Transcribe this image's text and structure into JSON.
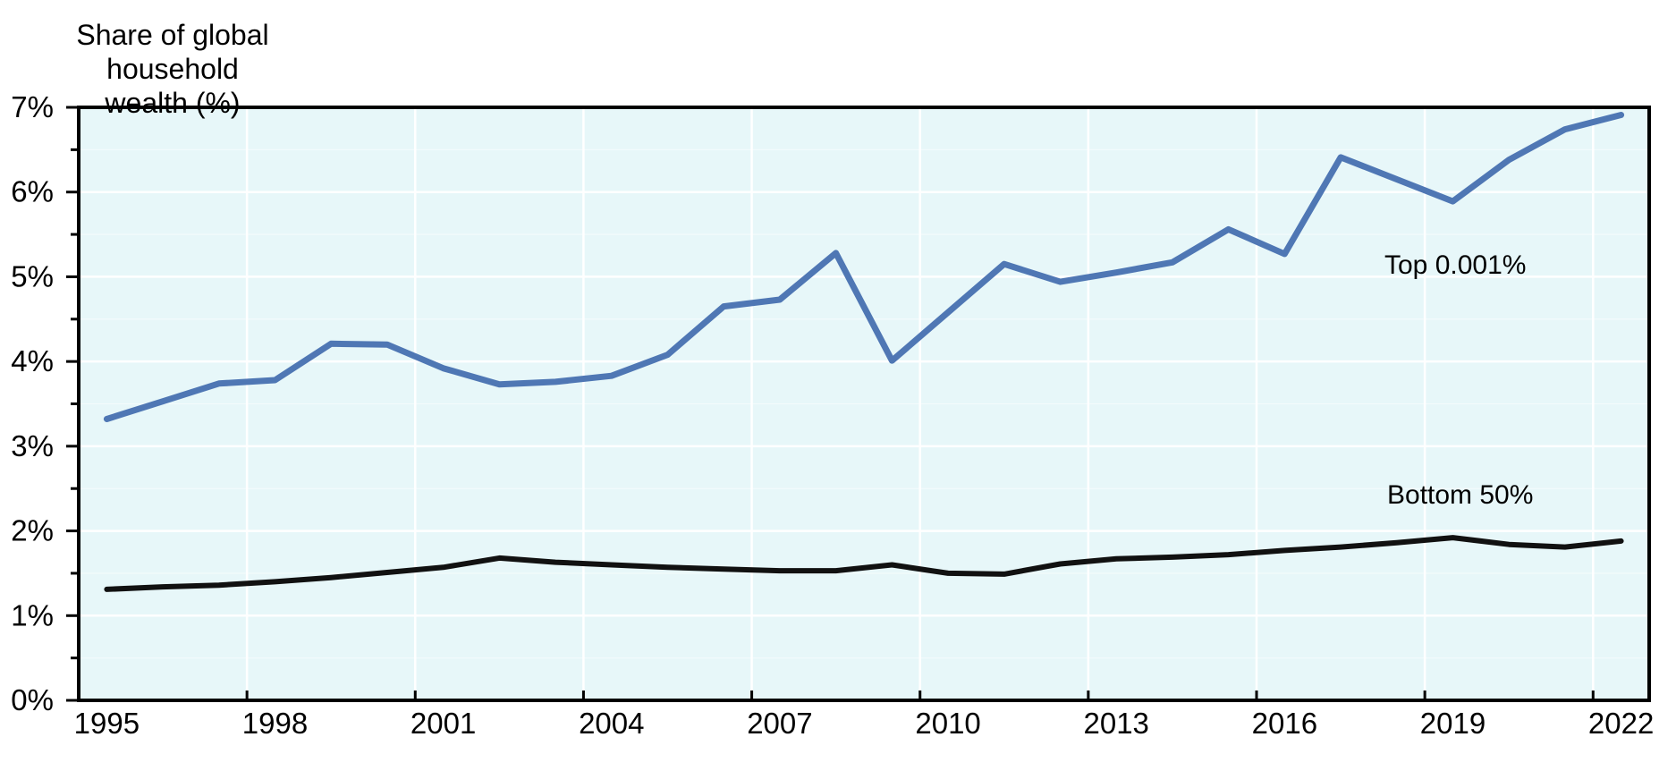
{
  "title": {
    "line1": "Share of global household",
    "line2": "wealth (%)"
  },
  "series_labels": {
    "top": "Top 0.001%",
    "bottom": "Bottom 50%"
  },
  "chart_data": {
    "type": "line",
    "title": "Share of global household wealth (%)",
    "xlabel": "",
    "ylabel": "Share of global household wealth (%)",
    "x": [
      1995,
      1996,
      1997,
      1998,
      1999,
      2000,
      2001,
      2002,
      2003,
      2004,
      2005,
      2006,
      2007,
      2008,
      2009,
      2010,
      2011,
      2012,
      2013,
      2014,
      2015,
      2016,
      2017,
      2018,
      2019,
      2020,
      2021,
      2022
    ],
    "x_tick_labels": [
      "1995",
      "1998",
      "2001",
      "2004",
      "2007",
      "2010",
      "2013",
      "2016",
      "2019",
      "2022"
    ],
    "x_tick_step_years": 3,
    "y_tick_labels": [
      "0%",
      "1%",
      "2%",
      "3%",
      "4%",
      "5%",
      "6%",
      "7%"
    ],
    "ylim": [
      0,
      7
    ],
    "y_tick_step": 1,
    "grid": true,
    "legend_position": "inline-annotations",
    "plot_bg": "#e7f7f9",
    "gridline_color": "#ffffff",
    "axis_color": "#000000",
    "series": [
      {
        "name": "Top 0.001%",
        "color": "#4f77b4",
        "values": [
          3.32,
          3.53,
          3.74,
          3.78,
          4.21,
          4.2,
          3.92,
          3.73,
          3.76,
          3.83,
          4.08,
          4.65,
          4.73,
          5.28,
          4.01,
          4.58,
          5.15,
          4.94,
          5.05,
          5.17,
          5.56,
          5.27,
          6.41,
          6.15,
          5.89,
          6.38,
          6.74,
          6.91
        ]
      },
      {
        "name": "Bottom 50%",
        "color": "#111111",
        "values": [
          1.31,
          1.34,
          1.36,
          1.4,
          1.45,
          1.51,
          1.57,
          1.68,
          1.63,
          1.6,
          1.57,
          1.55,
          1.53,
          1.53,
          1.6,
          1.5,
          1.49,
          1.61,
          1.67,
          1.69,
          1.72,
          1.77,
          1.81,
          1.86,
          1.92,
          1.84,
          1.81,
          1.88
        ]
      }
    ]
  }
}
